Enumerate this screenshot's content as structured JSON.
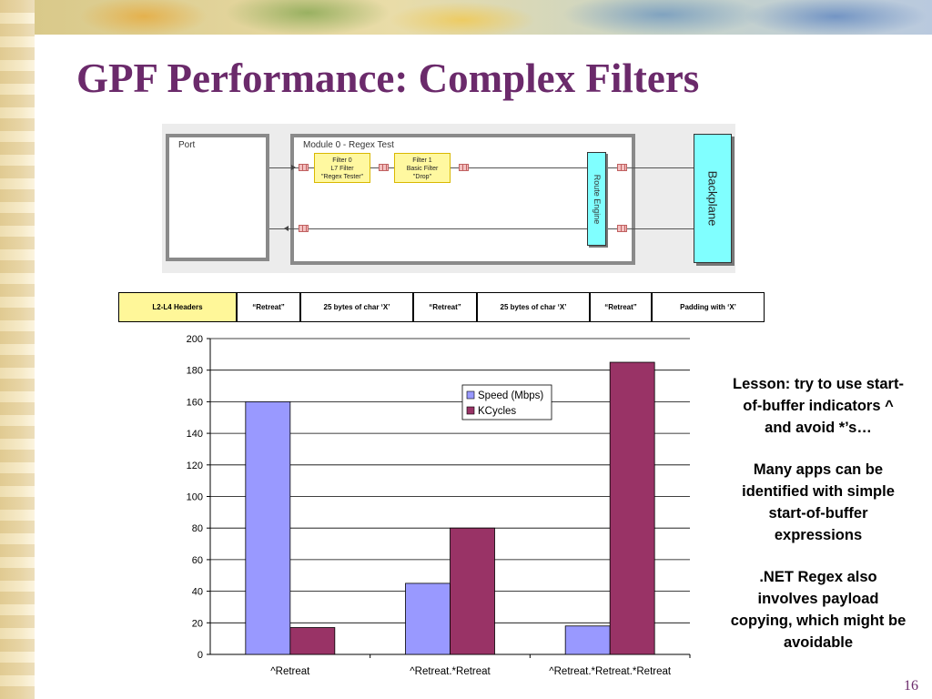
{
  "slide": {
    "title": "GPF Performance: Complex Filters",
    "page_number": "16"
  },
  "diagram": {
    "port_label": "Port",
    "module_label": "Module 0 - Regex Test",
    "filter0": [
      "Filter 0",
      "L7 Filter",
      "\"Regex Tester\""
    ],
    "filter1": [
      "Filter 1",
      "Basic Filter",
      "\"Drop\""
    ],
    "route_engine": "Route Engine",
    "backplane": "Backplane",
    "colors": {
      "filter": "#fff8a0",
      "engine": "#80ffff"
    }
  },
  "packet": {
    "fields": [
      {
        "label": "L2-L4 Headers",
        "color": "#fff799"
      },
      {
        "label": "“Retreat”",
        "color": "#ffffff"
      },
      {
        "label": "25 bytes of char ‘X’",
        "color": "#ffffff"
      },
      {
        "label": "“Retreat”",
        "color": "#ffffff"
      },
      {
        "label": "25 bytes of char ‘X’",
        "color": "#ffffff"
      },
      {
        "label": "“Retreat”",
        "color": "#ffffff"
      },
      {
        "label": "Padding with ‘X’",
        "color": "#ffffff"
      }
    ]
  },
  "chart_data": {
    "type": "bar",
    "categories": [
      "^Retreat",
      "^Retreat.*Retreat",
      "^Retreat.*Retreat.*Retreat"
    ],
    "series": [
      {
        "name": "Speed (Mbps)",
        "values": [
          160,
          45,
          18
        ],
        "color": "#9999ff"
      },
      {
        "name": "KCycles",
        "values": [
          17,
          80,
          185
        ],
        "color": "#993366"
      }
    ],
    "yticks": [
      "0",
      "20",
      "40",
      "60",
      "80",
      "100",
      "120",
      "140",
      "160",
      "180",
      "200"
    ],
    "ylim": [
      0,
      200
    ],
    "grid": true,
    "legend": "top-right"
  },
  "lesson": {
    "p1": "Lesson: try to use start-of-buffer indicators ^ and avoid *’s…",
    "p2": "Many apps can be identified with simple start-of-buffer expressions",
    "p3": ".NET Regex also involves payload copying, which might be avoidable"
  }
}
